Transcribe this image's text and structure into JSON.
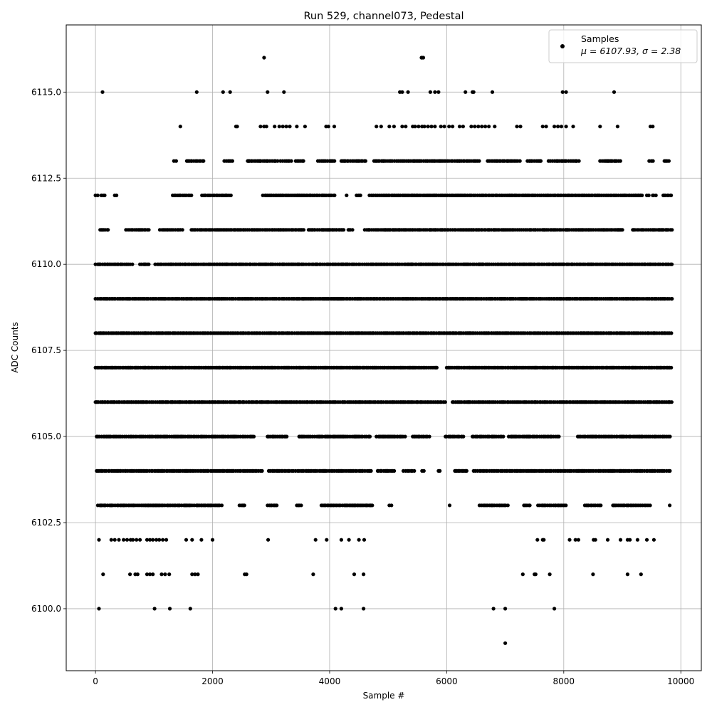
{
  "chart_data": {
    "type": "scatter",
    "title": "Run 529, channel073, Pedestal",
    "xlabel": "Sample #",
    "ylabel": "ADC Counts",
    "xlim": [
      -500,
      10350
    ],
    "ylim": [
      6098.2,
      6116.95
    ],
    "x_ticks": [
      0,
      2000,
      4000,
      6000,
      8000,
      10000
    ],
    "x_tick_labels": [
      "0",
      "2000",
      "4000",
      "6000",
      "8000",
      "10000"
    ],
    "y_ticks": [
      6100.0,
      6102.5,
      6105.0,
      6107.5,
      6110.0,
      6112.5,
      6115.0
    ],
    "y_tick_labels": [
      "6100.0",
      "6102.5",
      "6105.0",
      "6107.5",
      "6110.0",
      "6112.5",
      "6115.0"
    ],
    "grid": true,
    "legend_position": "top-right",
    "series": [
      {
        "name": "Samples",
        "legend_stats": "μ = 6107.93, σ = 2.38",
        "color": "#000000",
        "marker": "circle",
        "n_samples": 9850,
        "mean": 6107.93,
        "std": 2.38,
        "level_ranges": [
          {
            "y": 6099,
            "x_ranges": [
              [
                6990,
                7010
              ]
            ]
          },
          {
            "y": 6100,
            "x": [
              60,
              1010,
              1270,
              1620,
              4100,
              4200,
              4580,
              6800,
              7000,
              7840
            ]
          },
          {
            "y": 6101,
            "x": [
              130,
              590,
              680,
              720,
              880,
              930,
              980,
              1130,
              1190,
              1260,
              1650,
              1700,
              1750,
              2550,
              2580,
              3720,
              4420,
              4580,
              7300,
              7500,
              7520,
              7760,
              8500,
              9090,
              9320
            ]
          },
          {
            "y": 6102,
            "x": [
              60,
              270,
              330,
              400,
              480,
              540,
              600,
              640,
              700,
              760,
              880,
              930,
              980,
              1040,
              1090,
              1150,
              1210,
              1550,
              1650,
              1810,
              2000,
              2950,
              3760,
              3950,
              4200,
              4330,
              4500,
              4590,
              7550,
              7640,
              7660,
              8100,
              8200,
              8250,
              8510,
              8540,
              8750,
              8970,
              9090,
              9130,
              9260,
              9420,
              9540
            ]
          },
          {
            "y": 6103,
            "x_ranges": [
              [
                40,
                2160
              ],
              [
                2460,
                2560
              ],
              [
                2940,
                3100
              ],
              [
                3440,
                3520
              ],
              [
                3860,
                4740
              ],
              [
                5020,
                5060
              ],
              [
                6040,
                6060
              ],
              [
                6560,
                7060
              ],
              [
                7320,
                7420
              ],
              [
                7560,
                8060
              ],
              [
                8360,
                8660
              ],
              [
                8840,
                9480
              ],
              [
                9800,
                9820
              ]
            ]
          },
          {
            "y": 6104,
            "x_ranges": [
              [
                20,
                2860
              ],
              [
                2960,
                4720
              ],
              [
                4820,
                5120
              ],
              [
                5260,
                5480
              ],
              [
                5580,
                5620
              ],
              [
                5860,
                5900
              ],
              [
                6140,
                6360
              ],
              [
                6460,
                9840
              ]
            ]
          },
          {
            "y": 6105,
            "x_ranges": [
              [
                20,
                2720
              ],
              [
                2940,
                3280
              ],
              [
                3480,
                4700
              ],
              [
                4800,
                5320
              ],
              [
                5420,
                5720
              ],
              [
                5980,
                6320
              ],
              [
                6440,
                6980
              ],
              [
                7060,
                7940
              ],
              [
                8240,
                9840
              ]
            ]
          },
          {
            "y": 6106,
            "x_ranges": [
              [
                0,
                5980
              ],
              [
                6100,
                9850
              ]
            ]
          },
          {
            "y": 6107,
            "x_ranges": [
              [
                0,
                5840
              ],
              [
                6000,
                9850
              ]
            ]
          },
          {
            "y": 6108,
            "x_ranges": [
              [
                0,
                9850
              ]
            ]
          },
          {
            "y": 6109,
            "x_ranges": [
              [
                0,
                9850
              ]
            ]
          },
          {
            "y": 6110,
            "x_ranges": [
              [
                0,
                660
              ],
              [
                760,
                940
              ],
              [
                1020,
                9850
              ]
            ]
          },
          {
            "y": 6111,
            "x_ranges": [
              [
                80,
                240
              ],
              [
                520,
                920
              ],
              [
                1100,
                1520
              ],
              [
                1640,
                3560
              ],
              [
                3640,
                4260
              ],
              [
                4320,
                4420
              ],
              [
                4600,
                9040
              ],
              [
                9180,
                9860
              ]
            ]
          },
          {
            "y": 6112,
            "x_ranges": [
              [
                0,
                40
              ],
              [
                100,
                180
              ],
              [
                330,
                380
              ],
              [
                1320,
                1640
              ],
              [
                1820,
                2320
              ],
              [
                2860,
                3920
              ],
              [
                3940,
                4100
              ],
              [
                4280,
                4300
              ],
              [
                4460,
                4560
              ],
              [
                4680,
                9340
              ],
              [
                9420,
                9460
              ],
              [
                9520,
                9600
              ],
              [
                9700,
                9840
              ]
            ]
          },
          {
            "y": 6113,
            "x_ranges": [
              [
                1340,
                1400
              ],
              [
                1560,
                1880
              ],
              [
                2200,
                2360
              ],
              [
                2600,
                3120
              ],
              [
                3160,
                3360
              ],
              [
                3420,
                3560
              ],
              [
                3800,
                4100
              ],
              [
                4200,
                4620
              ],
              [
                4760,
                6560
              ],
              [
                6700,
                7280
              ],
              [
                7380,
                7620
              ],
              [
                7740,
                8260
              ],
              [
                8620,
                8980
              ],
              [
                9460,
                9540
              ],
              [
                9720,
                9800
              ]
            ]
          },
          {
            "y": 6114,
            "x": [
              1450,
              2400,
              2420,
              2820,
              2880,
              2920,
              3060,
              3140,
              3200,
              3260,
              3320,
              3440,
              3580,
              3940,
              3980,
              4080,
              4800,
              4880,
              5020,
              5100,
              5240,
              5300,
              5420,
              5460,
              5520,
              5580,
              5620,
              5680,
              5740,
              5800,
              5900,
              5960,
              6040,
              6100,
              6220,
              6280,
              6420,
              6480,
              6540,
              6600,
              6660,
              6720,
              6820,
              7200,
              7260,
              7640,
              7700,
              7840,
              7900,
              7960,
              8040,
              8160,
              8620,
              8920,
              9480,
              9520
            ]
          },
          {
            "y": 6115,
            "x": [
              120,
              1730,
              2180,
              2300,
              2940,
              3220,
              5200,
              5240,
              5340,
              5720,
              5800,
              5860,
              6320,
              6440,
              6460,
              6780,
              7980,
              8040,
              8860
            ]
          },
          {
            "y": 6116,
            "x": [
              2880,
              5570,
              5580,
              5600
            ]
          }
        ]
      }
    ]
  }
}
